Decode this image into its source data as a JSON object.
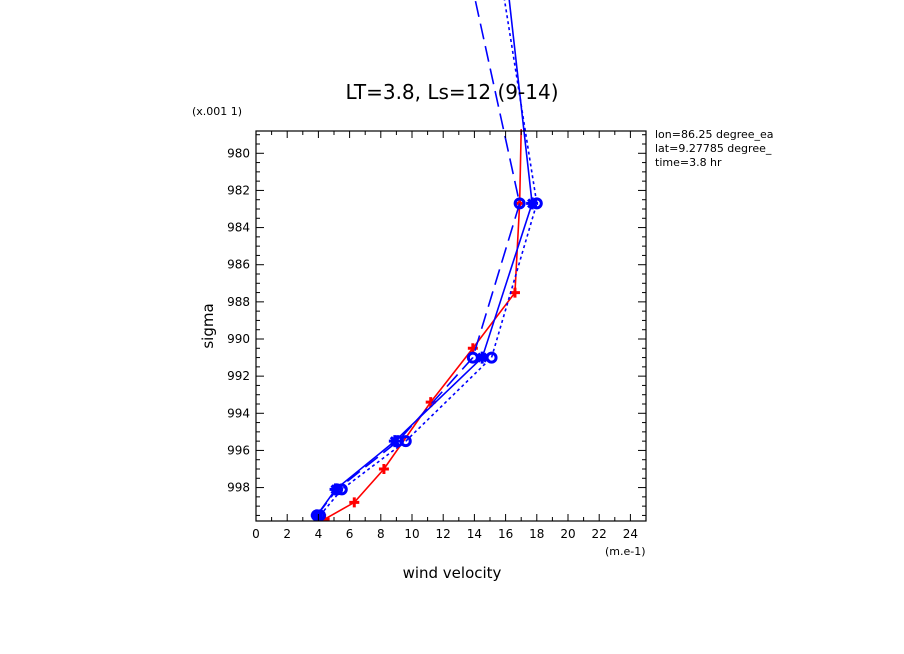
{
  "chart_data": {
    "type": "line",
    "title": "LT=3.8, Ls=12 (9-14)",
    "xlabel": "wind velocity",
    "ylabel": "sigma",
    "x_unit_label": "(m.e-1)",
    "y_scale_label": "(x.001 1)",
    "xlim": [
      0,
      25
    ],
    "ylim": [
      999.8,
      978.8
    ],
    "x_ticks_major": [
      0,
      2,
      4,
      6,
      8,
      10,
      12,
      14,
      16,
      18,
      20,
      22,
      24
    ],
    "y_ticks_major": [
      980,
      982,
      984,
      986,
      988,
      990,
      992,
      994,
      996,
      998
    ],
    "grid": false,
    "info_lines": [
      "lon=86.25 degree_ea",
      "lat=9.27785 degree_",
      "time=3.8 hr"
    ],
    "series": [
      {
        "style": "solid-red-plus",
        "color": "#ff0000",
        "points": [
          [
            4.4,
            999.7
          ],
          [
            6.3,
            998.8
          ],
          [
            8.2,
            997.0
          ],
          [
            11.2,
            993.4
          ],
          [
            13.9,
            990.5
          ],
          [
            16.6,
            987.5
          ],
          [
            16.9,
            982.7
          ],
          [
            17.0,
            978.7
          ]
        ]
      },
      {
        "style": "solid-blue-asterisk",
        "color": "#0000ff",
        "points": [
          [
            3.9,
            999.5
          ],
          [
            5.1,
            998.1
          ],
          [
            8.9,
            995.5
          ],
          [
            14.5,
            991.0
          ],
          [
            17.7,
            982.7
          ],
          [
            16.0,
            970.0
          ]
        ]
      },
      {
        "style": "dotted-blue-circle",
        "color": "#0000ff",
        "points": [
          [
            4.1,
            999.5
          ],
          [
            5.5,
            998.1
          ],
          [
            9.6,
            995.5
          ],
          [
            15.1,
            991.0
          ],
          [
            18.0,
            982.7
          ],
          [
            15.6,
            970.0
          ]
        ]
      },
      {
        "style": "dashed-blue-circle",
        "color": "#0000ff",
        "points": [
          [
            3.9,
            999.5
          ],
          [
            5.2,
            998.1
          ],
          [
            9.1,
            995.5
          ],
          [
            13.9,
            991.0
          ],
          [
            16.9,
            982.7
          ],
          [
            13.6,
            970.0
          ]
        ]
      }
    ]
  }
}
